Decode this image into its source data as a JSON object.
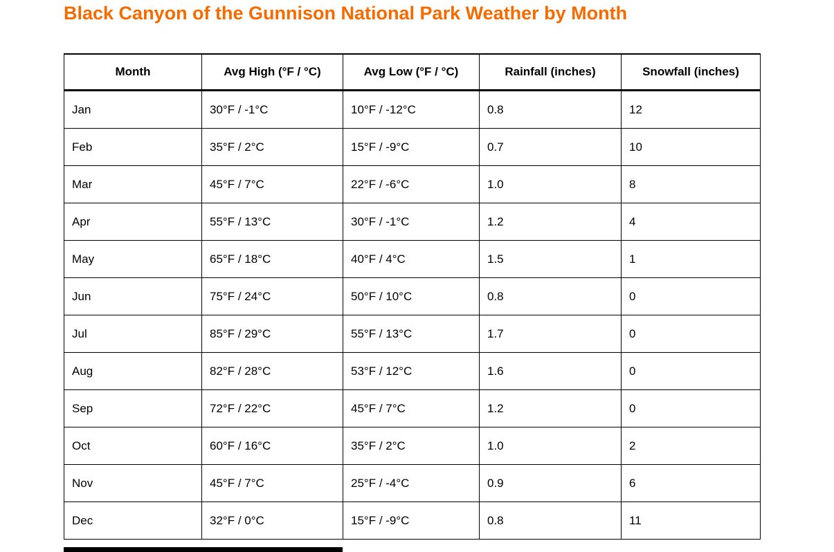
{
  "page": {
    "title": "Black Canyon of the Gunnison National Park Weather by Month"
  },
  "colors": {
    "title_orange": "#F56B00",
    "border_black": "#000000",
    "background": "#FFFFFF",
    "text": "#000000"
  },
  "table": {
    "columns": [
      {
        "key": "month",
        "label": "Month"
      },
      {
        "key": "avg_high",
        "label": "Avg High (°F / °C)"
      },
      {
        "key": "avg_low",
        "label": "Avg Low (°F / °C)"
      },
      {
        "key": "rainfall",
        "label": "Rainfall (inches)"
      },
      {
        "key": "snowfall",
        "label": "Snowfall (inches)"
      }
    ],
    "rows": [
      {
        "month": "Jan",
        "avg_high": "30°F / -1°C",
        "avg_low": "10°F / -12°C",
        "rainfall": "0.8",
        "snowfall": "12"
      },
      {
        "month": "Feb",
        "avg_high": "35°F / 2°C",
        "avg_low": "15°F / -9°C",
        "rainfall": "0.7",
        "snowfall": "10"
      },
      {
        "month": "Mar",
        "avg_high": "45°F / 7°C",
        "avg_low": "22°F / -6°C",
        "rainfall": "1.0",
        "snowfall": "8"
      },
      {
        "month": "Apr",
        "avg_high": "55°F / 13°C",
        "avg_low": "30°F / -1°C",
        "rainfall": "1.2",
        "snowfall": "4"
      },
      {
        "month": "May",
        "avg_high": "65°F / 18°C",
        "avg_low": "40°F / 4°C",
        "rainfall": "1.5",
        "snowfall": "1"
      },
      {
        "month": "Jun",
        "avg_high": "75°F / 24°C",
        "avg_low": "50°F / 10°C",
        "rainfall": "0.8",
        "snowfall": "0"
      },
      {
        "month": "Jul",
        "avg_high": "85°F / 29°C",
        "avg_low": "55°F / 13°C",
        "rainfall": "1.7",
        "snowfall": "0"
      },
      {
        "month": "Aug",
        "avg_high": "82°F / 28°C",
        "avg_low": "53°F / 12°C",
        "rainfall": "1.6",
        "snowfall": "0"
      },
      {
        "month": "Sep",
        "avg_high": "72°F / 22°C",
        "avg_low": "45°F / 7°C",
        "rainfall": "1.2",
        "snowfall": "0"
      },
      {
        "month": "Oct",
        "avg_high": "60°F / 16°C",
        "avg_low": "35°F / 2°C",
        "rainfall": "1.0",
        "snowfall": "2"
      },
      {
        "month": "Nov",
        "avg_high": "45°F / 7°C",
        "avg_low": "25°F / -4°C",
        "rainfall": "0.9",
        "snowfall": "6"
      },
      {
        "month": "Dec",
        "avg_high": "32°F / 0°C",
        "avg_low": "15°F / -9°C",
        "rainfall": "0.8",
        "snowfall": "11"
      }
    ]
  }
}
